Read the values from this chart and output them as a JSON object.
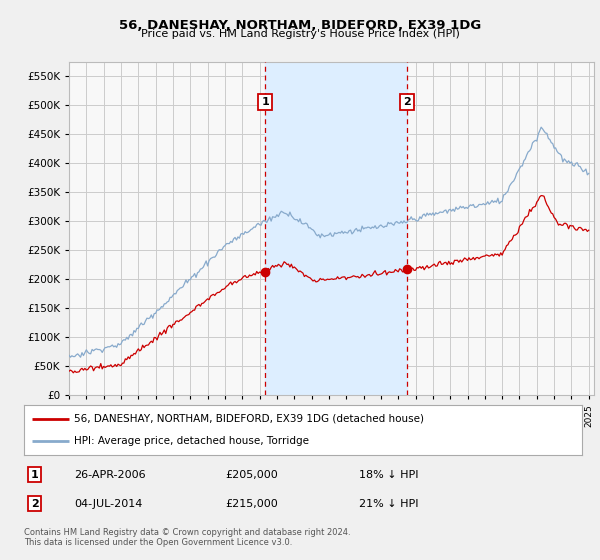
{
  "title": "56, DANESHAY, NORTHAM, BIDEFORD, EX39 1DG",
  "subtitle": "Price paid vs. HM Land Registry's House Price Index (HPI)",
  "ytick_values": [
    0,
    50000,
    100000,
    150000,
    200000,
    250000,
    300000,
    350000,
    400000,
    450000,
    500000,
    550000
  ],
  "ylim": [
    0,
    575000
  ],
  "fig_bg": "#f0f0f0",
  "plot_bg": "#f8f8f8",
  "grid_color": "#cccccc",
  "shade_color": "#ddeeff",
  "red_line_color": "#cc0000",
  "blue_line_color": "#88aacc",
  "vline_color": "#cc0000",
  "marker1_x": 2006.32,
  "marker2_x": 2014.51,
  "annotation1_date": "26-APR-2006",
  "annotation1_price": "£205,000",
  "annotation1_hpi": "18% ↓ HPI",
  "annotation2_date": "04-JUL-2014",
  "annotation2_price": "£215,000",
  "annotation2_hpi": "21% ↓ HPI",
  "footer": "Contains HM Land Registry data © Crown copyright and database right 2024.\nThis data is licensed under the Open Government Licence v3.0.",
  "xstart": 1995,
  "xend": 2025
}
